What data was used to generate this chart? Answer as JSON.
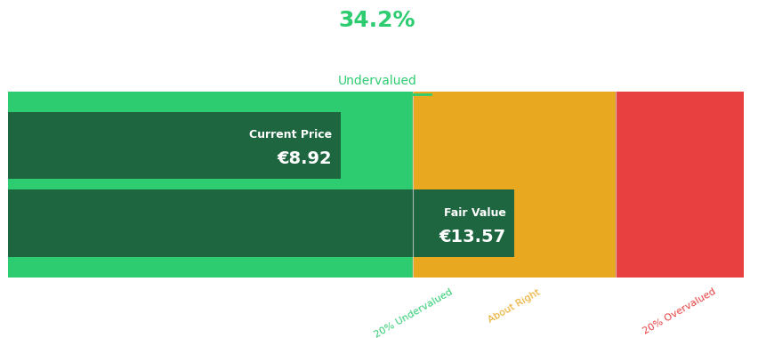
{
  "current_price": 8.92,
  "fair_value": 13.57,
  "undervalued_pct": "34.2%",
  "undervalued_label": "Undervalued",
  "current_price_label": "Current Price",
  "current_price_text": "€8.92",
  "fair_value_label": "Fair Value",
  "fair_value_text": "€13.57",
  "color_dark_green": "#1e6640",
  "color_bright_green": "#2ecc71",
  "color_orange": "#e8a820",
  "color_red": "#e84040",
  "color_header_green": "#2ecc71",
  "label_20_undervalued": "20% Undervalued",
  "label_about_right": "About Right",
  "label_20_overvalued": "20% Overvalued",
  "bg_color": "#ffffff",
  "x_max": 19.7,
  "fv_minus_20": 10.856,
  "fv_plus_20": 16.284
}
